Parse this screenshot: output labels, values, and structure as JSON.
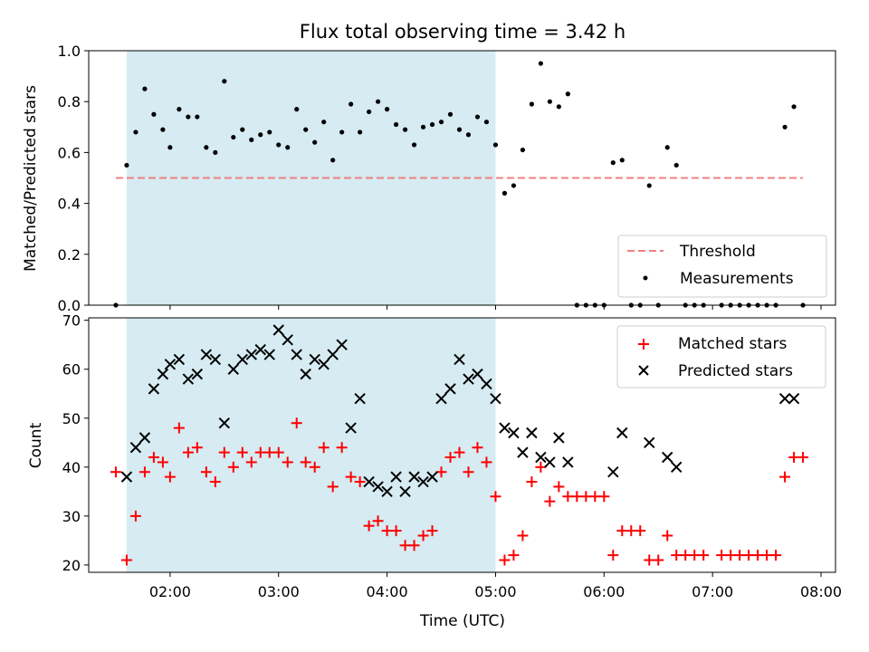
{
  "chart_data": [
    {
      "type": "scatter",
      "title": "Flux total observing time = 3.42 h",
      "xlabel": "",
      "ylabel": "Matched/Predicted stars",
      "xlim": [
        "01:15",
        "08:08"
      ],
      "ylim": [
        0,
        1.0
      ],
      "yticks": [
        "0.0",
        "0.2",
        "0.4",
        "0.6",
        "0.8",
        "1.0"
      ],
      "shaded_region": {
        "start": "01:36",
        "end": "05:00",
        "color": "#add8e6"
      },
      "threshold": {
        "name": "Threshold",
        "value": 0.5,
        "x_start": "01:30",
        "x_end": "07:50",
        "color": "#f08080"
      },
      "legend_position": "lower-right",
      "series": [
        {
          "name": "Measurements",
          "marker": "dot",
          "color": "#000000",
          "points": [
            [
              "01:30",
              0.0
            ],
            [
              "01:36",
              0.55
            ],
            [
              "01:41",
              0.68
            ],
            [
              "01:46",
              0.85
            ],
            [
              "01:51",
              0.75
            ],
            [
              "01:56",
              0.69
            ],
            [
              "02:00",
              0.62
            ],
            [
              "02:05",
              0.77
            ],
            [
              "02:10",
              0.74
            ],
            [
              "02:15",
              0.74
            ],
            [
              "02:20",
              0.62
            ],
            [
              "02:25",
              0.6
            ],
            [
              "02:30",
              0.88
            ],
            [
              "02:35",
              0.66
            ],
            [
              "02:40",
              0.69
            ],
            [
              "02:45",
              0.65
            ],
            [
              "02:50",
              0.67
            ],
            [
              "02:55",
              0.68
            ],
            [
              "03:00",
              0.63
            ],
            [
              "03:05",
              0.62
            ],
            [
              "03:10",
              0.77
            ],
            [
              "03:15",
              0.69
            ],
            [
              "03:20",
              0.64
            ],
            [
              "03:25",
              0.72
            ],
            [
              "03:30",
              0.57
            ],
            [
              "03:35",
              0.68
            ],
            [
              "03:40",
              0.79
            ],
            [
              "03:45",
              0.68
            ],
            [
              "03:50",
              0.76
            ],
            [
              "03:55",
              0.8
            ],
            [
              "04:00",
              0.77
            ],
            [
              "04:05",
              0.71
            ],
            [
              "04:10",
              0.69
            ],
            [
              "04:15",
              0.63
            ],
            [
              "04:20",
              0.7
            ],
            [
              "04:25",
              0.71
            ],
            [
              "04:30",
              0.72
            ],
            [
              "04:35",
              0.75
            ],
            [
              "04:40",
              0.69
            ],
            [
              "04:45",
              0.67
            ],
            [
              "04:50",
              0.74
            ],
            [
              "04:55",
              0.72
            ],
            [
              "05:00",
              0.63
            ],
            [
              "05:05",
              0.44
            ],
            [
              "05:10",
              0.47
            ],
            [
              "05:15",
              0.61
            ],
            [
              "05:20",
              0.79
            ],
            [
              "05:25",
              0.95
            ],
            [
              "05:30",
              0.8
            ],
            [
              "05:35",
              0.78
            ],
            [
              "05:40",
              0.83
            ],
            [
              "05:45",
              0.0
            ],
            [
              "05:50",
              0.0
            ],
            [
              "05:55",
              0.0
            ],
            [
              "06:00",
              0.0
            ],
            [
              "06:05",
              0.56
            ],
            [
              "06:10",
              0.57
            ],
            [
              "06:15",
              0.0
            ],
            [
              "06:20",
              0.0
            ],
            [
              "06:25",
              0.47
            ],
            [
              "06:30",
              0.0
            ],
            [
              "06:35",
              0.62
            ],
            [
              "06:40",
              0.55
            ],
            [
              "06:45",
              0.0
            ],
            [
              "06:50",
              0.0
            ],
            [
              "06:55",
              0.0
            ],
            [
              "07:05",
              0.0
            ],
            [
              "07:10",
              0.0
            ],
            [
              "07:15",
              0.0
            ],
            [
              "07:20",
              0.0
            ],
            [
              "07:25",
              0.0
            ],
            [
              "07:30",
              0.0
            ],
            [
              "07:35",
              0.0
            ],
            [
              "07:40",
              0.7
            ],
            [
              "07:45",
              0.78
            ],
            [
              "07:50",
              0.0
            ]
          ]
        }
      ]
    },
    {
      "type": "scatter",
      "title": "",
      "xlabel": "Time (UTC)",
      "ylabel": "Count",
      "xlim": [
        "01:15",
        "08:08"
      ],
      "ylim": [
        18.5,
        70.5
      ],
      "yticks": [
        "20",
        "30",
        "40",
        "50",
        "60",
        "70"
      ],
      "xticks": [
        "02:00",
        "03:00",
        "04:00",
        "05:00",
        "06:00",
        "07:00",
        "08:00"
      ],
      "shaded_region": {
        "start": "01:36",
        "end": "05:00",
        "color": "#add8e6"
      },
      "legend_position": "top-right",
      "series": [
        {
          "name": "Matched stars",
          "marker": "plus",
          "color": "#ff0000",
          "points": [
            [
              "01:30",
              39
            ],
            [
              "01:36",
              21
            ],
            [
              "01:41",
              30
            ],
            [
              "01:46",
              39
            ],
            [
              "01:51",
              42
            ],
            [
              "01:56",
              41
            ],
            [
              "02:00",
              38
            ],
            [
              "02:05",
              48
            ],
            [
              "02:10",
              43
            ],
            [
              "02:15",
              44
            ],
            [
              "02:20",
              39
            ],
            [
              "02:25",
              37
            ],
            [
              "02:30",
              43
            ],
            [
              "02:35",
              40
            ],
            [
              "02:40",
              43
            ],
            [
              "02:45",
              41
            ],
            [
              "02:50",
              43
            ],
            [
              "02:55",
              43
            ],
            [
              "03:00",
              43
            ],
            [
              "03:05",
              41
            ],
            [
              "03:10",
              49
            ],
            [
              "03:15",
              41
            ],
            [
              "03:20",
              40
            ],
            [
              "03:25",
              44
            ],
            [
              "03:30",
              36
            ],
            [
              "03:35",
              44
            ],
            [
              "03:40",
              38
            ],
            [
              "03:45",
              37
            ],
            [
              "03:50",
              28
            ],
            [
              "03:55",
              29
            ],
            [
              "04:00",
              27
            ],
            [
              "04:05",
              27
            ],
            [
              "04:10",
              24
            ],
            [
              "04:15",
              24
            ],
            [
              "04:20",
              26
            ],
            [
              "04:25",
              27
            ],
            [
              "04:30",
              39
            ],
            [
              "04:35",
              42
            ],
            [
              "04:40",
              43
            ],
            [
              "04:45",
              39
            ],
            [
              "04:50",
              44
            ],
            [
              "04:55",
              41
            ],
            [
              "05:00",
              34
            ],
            [
              "05:05",
              21
            ],
            [
              "05:10",
              22
            ],
            [
              "05:15",
              26
            ],
            [
              "05:20",
              37
            ],
            [
              "05:25",
              40
            ],
            [
              "05:30",
              33
            ],
            [
              "05:35",
              36
            ],
            [
              "05:40",
              34
            ],
            [
              "05:45",
              34
            ],
            [
              "05:50",
              34
            ],
            [
              "05:55",
              34
            ],
            [
              "06:00",
              34
            ],
            [
              "06:05",
              22
            ],
            [
              "06:10",
              27
            ],
            [
              "06:15",
              27
            ],
            [
              "06:20",
              27
            ],
            [
              "06:25",
              21
            ],
            [
              "06:30",
              21
            ],
            [
              "06:35",
              26
            ],
            [
              "06:40",
              22
            ],
            [
              "06:45",
              22
            ],
            [
              "06:50",
              22
            ],
            [
              "06:55",
              22
            ],
            [
              "07:05",
              22
            ],
            [
              "07:10",
              22
            ],
            [
              "07:15",
              22
            ],
            [
              "07:20",
              22
            ],
            [
              "07:25",
              22
            ],
            [
              "07:30",
              22
            ],
            [
              "07:35",
              22
            ],
            [
              "07:40",
              38
            ],
            [
              "07:45",
              42
            ],
            [
              "07:50",
              42
            ]
          ]
        },
        {
          "name": "Predicted stars",
          "marker": "x",
          "color": "#000000",
          "points": [
            [
              "01:36",
              38
            ],
            [
              "01:41",
              44
            ],
            [
              "01:46",
              46
            ],
            [
              "01:51",
              56
            ],
            [
              "01:56",
              59
            ],
            [
              "02:00",
              61
            ],
            [
              "02:05",
              62
            ],
            [
              "02:10",
              58
            ],
            [
              "02:15",
              59
            ],
            [
              "02:20",
              63
            ],
            [
              "02:25",
              62
            ],
            [
              "02:30",
              49
            ],
            [
              "02:35",
              60
            ],
            [
              "02:40",
              62
            ],
            [
              "02:45",
              63
            ],
            [
              "02:50",
              64
            ],
            [
              "02:55",
              63
            ],
            [
              "03:00",
              68
            ],
            [
              "03:05",
              66
            ],
            [
              "03:10",
              63
            ],
            [
              "03:15",
              59
            ],
            [
              "03:20",
              62
            ],
            [
              "03:25",
              61
            ],
            [
              "03:30",
              63
            ],
            [
              "03:35",
              65
            ],
            [
              "03:40",
              48
            ],
            [
              "03:45",
              54
            ],
            [
              "03:50",
              37
            ],
            [
              "03:55",
              36
            ],
            [
              "04:00",
              35
            ],
            [
              "04:05",
              38
            ],
            [
              "04:10",
              35
            ],
            [
              "04:15",
              38
            ],
            [
              "04:20",
              37
            ],
            [
              "04:25",
              38
            ],
            [
              "04:30",
              54
            ],
            [
              "04:35",
              56
            ],
            [
              "04:40",
              62
            ],
            [
              "04:45",
              58
            ],
            [
              "04:50",
              59
            ],
            [
              "04:55",
              57
            ],
            [
              "05:00",
              54
            ],
            [
              "05:05",
              48
            ],
            [
              "05:10",
              47
            ],
            [
              "05:15",
              43
            ],
            [
              "05:20",
              47
            ],
            [
              "05:25",
              42
            ],
            [
              "05:30",
              41
            ],
            [
              "05:35",
              46
            ],
            [
              "05:40",
              41
            ],
            [
              "06:05",
              39
            ],
            [
              "06:10",
              47
            ],
            [
              "06:25",
              45
            ],
            [
              "06:35",
              42
            ],
            [
              "06:40",
              40
            ],
            [
              "07:40",
              54
            ],
            [
              "07:45",
              54
            ]
          ]
        }
      ]
    }
  ]
}
